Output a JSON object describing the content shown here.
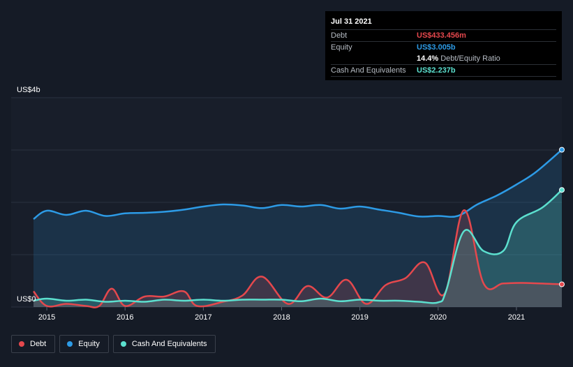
{
  "chart_data": {
    "type": "area",
    "ylabel_top": "US$4b",
    "ylabel_bottom": "US$0",
    "ylim": [
      0,
      4
    ],
    "xlim": [
      2014.83,
      2021.58
    ],
    "x_ticks": [
      "2015",
      "2016",
      "2017",
      "2018",
      "2019",
      "2020",
      "2021"
    ],
    "grid": true,
    "series": [
      {
        "name": "Debt",
        "color": "#e5484d",
        "points": [
          [
            2014.83,
            0.3
          ],
          [
            2015.0,
            0.02
          ],
          [
            2015.25,
            0.06
          ],
          [
            2015.5,
            0.02
          ],
          [
            2015.67,
            0.02
          ],
          [
            2015.83,
            0.35
          ],
          [
            2016.0,
            0.02
          ],
          [
            2016.25,
            0.2
          ],
          [
            2016.5,
            0.2
          ],
          [
            2016.75,
            0.3
          ],
          [
            2016.92,
            0.02
          ],
          [
            2017.25,
            0.1
          ],
          [
            2017.5,
            0.22
          ],
          [
            2017.75,
            0.58
          ],
          [
            2018.08,
            0.06
          ],
          [
            2018.33,
            0.4
          ],
          [
            2018.58,
            0.18
          ],
          [
            2018.83,
            0.52
          ],
          [
            2019.08,
            0.06
          ],
          [
            2019.33,
            0.42
          ],
          [
            2019.58,
            0.55
          ],
          [
            2019.83,
            0.85
          ],
          [
            2020.08,
            0.25
          ],
          [
            2020.33,
            1.85
          ],
          [
            2020.58,
            0.45
          ],
          [
            2020.83,
            0.45
          ],
          [
            2021.08,
            0.46
          ],
          [
            2021.58,
            0.4335
          ]
        ]
      },
      {
        "name": "Equity",
        "color": "#2d9be6",
        "points": [
          [
            2014.83,
            1.68
          ],
          [
            2015.0,
            1.84
          ],
          [
            2015.25,
            1.76
          ],
          [
            2015.5,
            1.84
          ],
          [
            2015.75,
            1.74
          ],
          [
            2016.0,
            1.79
          ],
          [
            2016.25,
            1.8
          ],
          [
            2016.5,
            1.82
          ],
          [
            2016.75,
            1.86
          ],
          [
            2017.0,
            1.92
          ],
          [
            2017.25,
            1.96
          ],
          [
            2017.5,
            1.94
          ],
          [
            2017.75,
            1.89
          ],
          [
            2018.0,
            1.95
          ],
          [
            2018.25,
            1.92
          ],
          [
            2018.5,
            1.95
          ],
          [
            2018.75,
            1.88
          ],
          [
            2019.0,
            1.92
          ],
          [
            2019.25,
            1.86
          ],
          [
            2019.5,
            1.8
          ],
          [
            2019.75,
            1.73
          ],
          [
            2020.0,
            1.74
          ],
          [
            2020.25,
            1.74
          ],
          [
            2020.5,
            1.96
          ],
          [
            2020.75,
            2.13
          ],
          [
            2021.0,
            2.34
          ],
          [
            2021.25,
            2.58
          ],
          [
            2021.58,
            3.005
          ]
        ]
      },
      {
        "name": "Cash And Equivalents",
        "color": "#5ce0cf",
        "points": [
          [
            2014.83,
            0.12
          ],
          [
            2015.0,
            0.16
          ],
          [
            2015.25,
            0.12
          ],
          [
            2015.5,
            0.14
          ],
          [
            2015.75,
            0.1
          ],
          [
            2016.0,
            0.12
          ],
          [
            2016.25,
            0.1
          ],
          [
            2016.5,
            0.14
          ],
          [
            2016.75,
            0.12
          ],
          [
            2017.0,
            0.14
          ],
          [
            2017.25,
            0.12
          ],
          [
            2017.5,
            0.14
          ],
          [
            2017.75,
            0.14
          ],
          [
            2018.0,
            0.14
          ],
          [
            2018.25,
            0.11
          ],
          [
            2018.5,
            0.16
          ],
          [
            2018.75,
            0.11
          ],
          [
            2019.0,
            0.14
          ],
          [
            2019.25,
            0.12
          ],
          [
            2019.5,
            0.12
          ],
          [
            2019.75,
            0.1
          ],
          [
            2020.0,
            0.09
          ],
          [
            2020.1,
            0.3
          ],
          [
            2020.33,
            1.45
          ],
          [
            2020.58,
            1.07
          ],
          [
            2020.83,
            1.07
          ],
          [
            2021.0,
            1.62
          ],
          [
            2021.33,
            1.9
          ],
          [
            2021.58,
            2.237
          ]
        ]
      }
    ]
  },
  "tooltip": {
    "date": "Jul 31 2021",
    "debt_label": "Debt",
    "debt_value": "US$433.456m",
    "equity_label": "Equity",
    "equity_value": "US$3.005b",
    "ratio_value": "14.4%",
    "ratio_label": "Debt/Equity Ratio",
    "cash_label": "Cash And Equivalents",
    "cash_value": "US$2.237b"
  },
  "legend": {
    "debt": "Debt",
    "equity": "Equity",
    "cash": "Cash And Equivalents"
  },
  "colors": {
    "debt": "#e5484d",
    "equity": "#2d9be6",
    "cash": "#5ce0cf",
    "background": "#151b26",
    "plot_bg": "#181f2b"
  }
}
